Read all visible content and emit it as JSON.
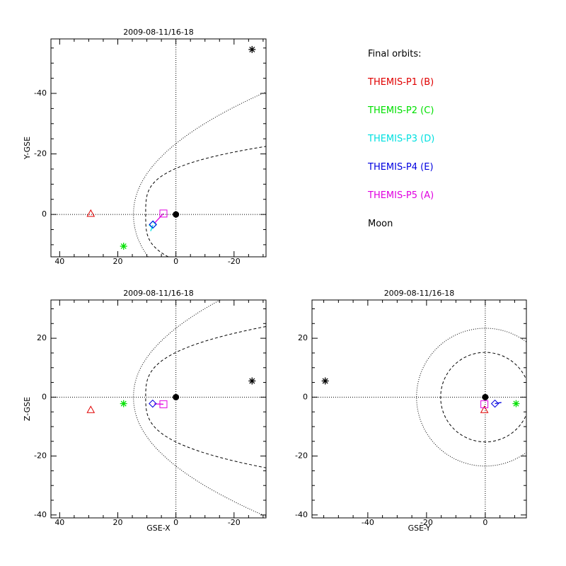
{
  "colors": {
    "P1": "#e00000",
    "P2": "#00e000",
    "P3": "#00e0e0",
    "P4": "#0000e0",
    "P5": "#e000e0",
    "Moon": "#000000"
  },
  "legend": {
    "title": "Final orbits:",
    "items": [
      {
        "key": "P1",
        "label": "THEMIS-P1 (B)"
      },
      {
        "key": "P2",
        "label": "THEMIS-P2 (C)"
      },
      {
        "key": "P3",
        "label": "THEMIS-P3 (D)"
      },
      {
        "key": "P4",
        "label": "THEMIS-P4 (E)"
      },
      {
        "key": "P5",
        "label": "THEMIS-P5 (A)"
      },
      {
        "key": "Moon",
        "label": "Moon"
      }
    ]
  },
  "chart_data": [
    {
      "type": "scatter",
      "title": "2009-08-11/16-18",
      "xlabel": "",
      "ylabel": "Y-GSE",
      "xlim": [
        43,
        -31
      ],
      "ylim": [
        14,
        -58
      ],
      "xticks": [
        40,
        20,
        0,
        -20
      ],
      "yticks": [
        -40,
        -20,
        0
      ],
      "grid": false,
      "crosshair": true,
      "earth": [
        0,
        0
      ],
      "points": [
        {
          "key": "P1",
          "symbol": "triangle",
          "x": 29.3,
          "y": -0.3
        },
        {
          "key": "P2",
          "symbol": "asterisk",
          "x": 18.0,
          "y": 10.5
        },
        {
          "key": "P3",
          "symbol": "diamond",
          "x": 8.0,
          "y": 3.5
        },
        {
          "key": "P4",
          "symbol": "diamond",
          "x": 7.9,
          "y": 3.3
        },
        {
          "key": "P5",
          "symbol": "square",
          "x": 4.3,
          "y": -0.3
        },
        {
          "key": "Moon",
          "symbol": "asterisk",
          "x": -26.2,
          "y": -54.5
        }
      ],
      "tracks": [
        {
          "key": "P5",
          "points": [
            [
              4.3,
              -0.3
            ],
            [
              7.3,
              2.8
            ]
          ]
        },
        {
          "key": "P3",
          "points": [
            [
              7.9,
              3.5
            ],
            [
              8.7,
              5.5
            ]
          ]
        }
      ],
      "boundaries": [
        {
          "style": "dotted",
          "nose": 14.6,
          "flank": 23.4,
          "tail_x": -31,
          "tail_y": 40.5,
          "side": "neg"
        },
        {
          "style": "dashed",
          "nose": 10.4,
          "flank": 15.2,
          "tail_x": -31,
          "tail_y": 22.5,
          "side": "neg"
        }
      ]
    },
    {
      "type": "scatter",
      "title": "2009-08-11/16-18",
      "xlabel": "GSE-X",
      "ylabel": "Z-GSE",
      "xlim": [
        43,
        -31
      ],
      "ylim": [
        -41,
        33
      ],
      "xticks": [
        40,
        20,
        0,
        -20
      ],
      "yticks": [
        20,
        0,
        -20,
        -40
      ],
      "grid": false,
      "crosshair": true,
      "earth": [
        0,
        0
      ],
      "points": [
        {
          "key": "P1",
          "symbol": "triangle",
          "x": 29.3,
          "y": -4.3
        },
        {
          "key": "P2",
          "symbol": "asterisk",
          "x": 18.0,
          "y": -2.2
        },
        {
          "key": "P4",
          "symbol": "diamond",
          "x": 8.0,
          "y": -2.2
        },
        {
          "key": "P5",
          "symbol": "square",
          "x": 4.3,
          "y": -2.4
        },
        {
          "key": "Moon",
          "symbol": "asterisk",
          "x": -26.2,
          "y": 5.5
        }
      ],
      "tracks": [
        {
          "key": "P5",
          "points": [
            [
              4.3,
              -2.4
            ],
            [
              7.5,
              -2.3
            ]
          ]
        }
      ],
      "boundaries": [
        {
          "style": "dotted",
          "nose": 14.6,
          "flank": 23.4,
          "tail_x": -31,
          "tail_y": 40.5,
          "side": "both"
        },
        {
          "style": "dashed",
          "nose": 10.4,
          "flank": 15.2,
          "tail_x": -31,
          "tail_y": 24.0,
          "side": "both"
        }
      ]
    },
    {
      "type": "scatter",
      "title": "2009-08-11/16-18",
      "xlabel": "GSE-Y",
      "ylabel": "",
      "xlim": [
        -59,
        14
      ],
      "ylim": [
        -41,
        33
      ],
      "xticks": [
        -40,
        -20,
        0
      ],
      "yticks": [
        20,
        0,
        -20,
        -40
      ],
      "grid": false,
      "crosshair": true,
      "earth": [
        0,
        0
      ],
      "points": [
        {
          "key": "P1",
          "symbol": "triangle",
          "x": -0.3,
          "y": -4.3
        },
        {
          "key": "P2",
          "symbol": "asterisk",
          "x": 10.5,
          "y": -2.2
        },
        {
          "key": "P4",
          "symbol": "diamond",
          "x": 3.3,
          "y": -2.2
        },
        {
          "key": "P5",
          "symbol": "square",
          "x": -0.3,
          "y": -2.4
        },
        {
          "key": "Moon",
          "symbol": "asterisk",
          "x": -54.5,
          "y": 5.5
        }
      ],
      "tracks": [
        {
          "key": "P4",
          "points": [
            [
              3.3,
              -2.2
            ],
            [
              5.5,
              -1.8
            ]
          ]
        }
      ],
      "circles": [
        {
          "style": "dotted",
          "r": 23.4
        },
        {
          "style": "dashed",
          "r": 15.2
        }
      ]
    }
  ]
}
